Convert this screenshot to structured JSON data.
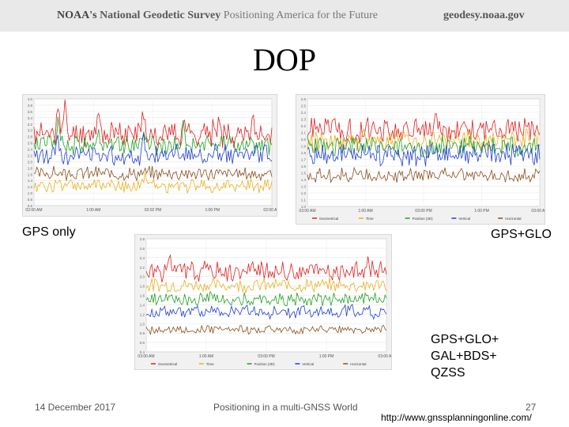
{
  "header": {
    "org": "NOAA's",
    "survey": "National Geodetic Survey",
    "tagline": "Positioning America for the Future",
    "site": "geodesy.noaa.gov"
  },
  "slide": {
    "title": "DOP",
    "label_gps": "GPS only",
    "label_glo": "GPS+GLO",
    "label_multi": [
      "GPS+GLO+",
      "GAL+BDS+",
      "QZSS"
    ]
  },
  "footer": {
    "date": "14 December 2017",
    "center": "Positioning in a multi-GNSS World",
    "page": "27",
    "url": "http://www.gnssplanningonline.com/"
  },
  "colors": {
    "geometrical": "#e02020",
    "time": "#e8b020",
    "position_3d": "#20a020",
    "vertical": "#2040d0",
    "horizontal": "#8a5020"
  },
  "chart_data": [
    {
      "type": "line",
      "ylim": [
        0.0,
        4.0
      ],
      "yticks": [
        "4.0",
        "3.8",
        "3.6",
        "3.4",
        "3.2",
        "3.0",
        "2.8",
        "2.6",
        "2.4",
        "2.2",
        "2.0",
        "1.8",
        "1.6",
        "1.4",
        "1.2",
        "1.0",
        "0.8",
        "0.6"
      ],
      "xticks": [
        "02:00 AM",
        "1:00 AM",
        "02:02 PM",
        "1:00 PM",
        "02:00 AM"
      ],
      "legend": [],
      "series": [
        {
          "color": "#e02020",
          "base": 2.7,
          "amp": 0.55,
          "seed": 11,
          "spikes": [
            [
              0.1,
              1.2
            ],
            [
              0.13,
              0.9
            ],
            [
              0.27,
              0.8
            ],
            [
              0.46,
              0.9
            ],
            [
              0.63,
              0.7
            ],
            [
              0.78,
              0.7
            ],
            [
              0.92,
              0.6
            ]
          ]
        },
        {
          "color": "#20a020",
          "base": 2.3,
          "amp": 0.45,
          "seed": 12,
          "spikes": [
            [
              0.1,
              1.0
            ],
            [
              0.27,
              0.6
            ],
            [
              0.46,
              0.7
            ],
            [
              0.63,
              0.6
            ]
          ]
        },
        {
          "color": "#2040d0",
          "base": 1.9,
          "amp": 0.45,
          "seed": 13,
          "spikes": [
            [
              0.1,
              0.8
            ],
            [
              0.46,
              0.6
            ]
          ]
        },
        {
          "color": "#8a5020",
          "base": 1.2,
          "amp": 0.3,
          "seed": 14,
          "spikes": []
        },
        {
          "color": "#e8b020",
          "base": 0.75,
          "amp": 0.3,
          "seed": 15,
          "spikes": [
            [
              0.47,
              0.6
            ]
          ]
        }
      ]
    },
    {
      "type": "line",
      "ylim": [
        0.0,
        2.6
      ],
      "yticks": [
        "2.6",
        "2.5",
        "2.4",
        "2.3",
        "2.2",
        "2.1",
        "2.0",
        "1.9",
        "1.8",
        "1.7",
        "1.6",
        "1.5",
        "1.4",
        "1.3",
        "1.2",
        "1.1",
        "1.0"
      ],
      "xticks": [
        "03:00 AM",
        "1:00 AM",
        "03:00 PM",
        "1:00 PM",
        "03:00 AM"
      ],
      "legend": [
        "Geometrical",
        "Time",
        "Position (3D)",
        "Vertical",
        "Horizontal"
      ],
      "series": [
        {
          "color": "#e02020",
          "base": 1.85,
          "amp": 0.35,
          "seed": 21,
          "spikes": [
            [
              0.08,
              0.3
            ],
            [
              0.55,
              0.35
            ]
          ]
        },
        {
          "color": "#e8b020",
          "base": 1.6,
          "amp": 0.3,
          "seed": 22,
          "spikes": []
        },
        {
          "color": "#20a020",
          "base": 1.45,
          "amp": 0.3,
          "seed": 23,
          "spikes": []
        },
        {
          "color": "#2040d0",
          "base": 1.25,
          "amp": 0.3,
          "seed": 24,
          "spikes": []
        },
        {
          "color": "#8a5020",
          "base": 0.75,
          "amp": 0.2,
          "seed": 25,
          "spikes": []
        }
      ]
    },
    {
      "type": "line",
      "ylim": [
        0.0,
        2.8
      ],
      "yticks": [
        "2.8",
        "2.6",
        "2.4",
        "2.2",
        "2.0",
        "1.8",
        "1.6",
        "1.4",
        "1.2",
        "1.0",
        "0.8",
        "0.6",
        "0.4"
      ],
      "xticks": [
        "03:00 AM",
        "1:00 AM",
        "03:00 PM",
        "1:00 PM",
        "03:00 AM"
      ],
      "legend": [
        "Geometrical",
        "Time",
        "Position (3D)",
        "Vertical",
        "Horizontal"
      ],
      "series": [
        {
          "color": "#e02020",
          "base": 2.0,
          "amp": 0.3,
          "seed": 31,
          "spikes": [
            [
              0.1,
              0.4
            ],
            [
              0.92,
              0.3
            ]
          ]
        },
        {
          "color": "#e8b020",
          "base": 1.65,
          "amp": 0.2,
          "seed": 32,
          "spikes": []
        },
        {
          "color": "#20a020",
          "base": 1.3,
          "amp": 0.2,
          "seed": 33,
          "spikes": []
        },
        {
          "color": "#2040d0",
          "base": 1.0,
          "amp": 0.2,
          "seed": 34,
          "spikes": []
        },
        {
          "color": "#8a5020",
          "base": 0.55,
          "amp": 0.12,
          "seed": 35,
          "spikes": []
        }
      ]
    }
  ]
}
